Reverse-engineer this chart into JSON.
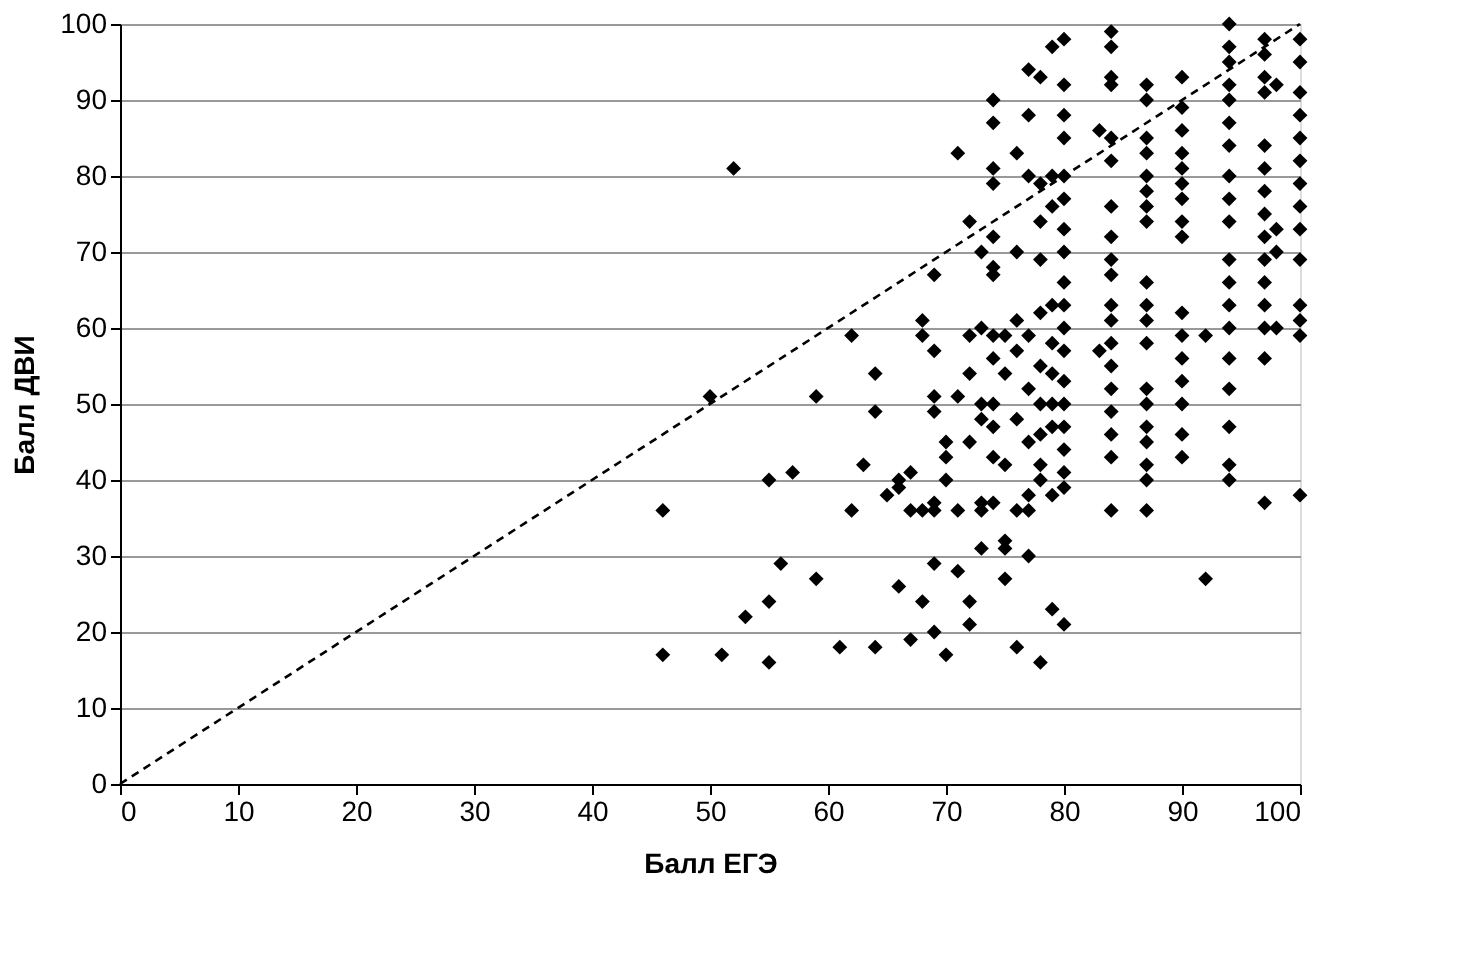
{
  "chart_data": {
    "type": "scatter",
    "xlabel": "Балл ЕГЭ",
    "ylabel": "Балл ДВИ",
    "xlim": [
      0,
      100
    ],
    "ylim": [
      0,
      100
    ],
    "xticks": [
      0,
      10,
      20,
      30,
      40,
      50,
      60,
      70,
      80,
      90,
      100
    ],
    "yticks": [
      0,
      10,
      20,
      30,
      40,
      50,
      60,
      70,
      80,
      90,
      100
    ],
    "grid": "y",
    "series": [
      {
        "color": "#000000",
        "marker": "diamond",
        "x": [
          46,
          46,
          50,
          51,
          52,
          53,
          55,
          55,
          55,
          56,
          57,
          59,
          59,
          61,
          62,
          62,
          63,
          64,
          64,
          64,
          65,
          66,
          66,
          66,
          67,
          67,
          67,
          68,
          68,
          68,
          68,
          69,
          69,
          69,
          69,
          69,
          69,
          69,
          69,
          70,
          70,
          70,
          70,
          71,
          71,
          71,
          71,
          72,
          72,
          72,
          72,
          72,
          72,
          73,
          73,
          73,
          73,
          73,
          73,
          73,
          74,
          74,
          74,
          74,
          74,
          74,
          74,
          74,
          74,
          74,
          74,
          74,
          74,
          75,
          75,
          75,
          75,
          75,
          75,
          76,
          76,
          76,
          76,
          76,
          76,
          76,
          77,
          77,
          77,
          77,
          77,
          77,
          77,
          77,
          77,
          78,
          78,
          78,
          78,
          78,
          78,
          78,
          78,
          78,
          78,
          78,
          79,
          79,
          79,
          79,
          79,
          79,
          79,
          79,
          79,
          79,
          80,
          80,
          80,
          80,
          80,
          80,
          80,
          80,
          80,
          80,
          80,
          80,
          80,
          80,
          80,
          80,
          80,
          80,
          80,
          83,
          83,
          84,
          84,
          84,
          84,
          84,
          84,
          84,
          84,
          84,
          84,
          84,
          84,
          84,
          84,
          84,
          84,
          84,
          84,
          84,
          87,
          87,
          87,
          87,
          87,
          87,
          87,
          87,
          87,
          87,
          87,
          87,
          87,
          87,
          87,
          87,
          87,
          87,
          87,
          90,
          90,
          90,
          90,
          90,
          90,
          90,
          90,
          90,
          90,
          90,
          90,
          90,
          90,
          90,
          90,
          92,
          92,
          94,
          94,
          94,
          94,
          94,
          94,
          94,
          94,
          94,
          94,
          94,
          94,
          94,
          94,
          94,
          94,
          94,
          94,
          94,
          97,
          97,
          97,
          97,
          97,
          97,
          97,
          97,
          97,
          97,
          97,
          97,
          97,
          97,
          97,
          98,
          98,
          98,
          98,
          100,
          100,
          100,
          100,
          100,
          100,
          100,
          100,
          100,
          100,
          100,
          100,
          100,
          100
        ],
        "values": [
          36,
          17,
          51,
          17,
          81,
          22,
          24,
          40,
          16,
          29,
          41,
          51,
          27,
          18,
          59,
          36,
          42,
          54,
          49,
          18,
          38,
          40,
          39,
          26,
          41,
          36,
          19,
          61,
          59,
          36,
          24,
          67,
          57,
          51,
          49,
          37,
          36,
          29,
          20,
          45,
          43,
          40,
          17,
          83,
          51,
          36,
          28,
          74,
          59,
          54,
          45,
          24,
          21,
          70,
          60,
          50,
          48,
          37,
          36,
          31,
          90,
          87,
          81,
          79,
          72,
          68,
          67,
          59,
          56,
          50,
          47,
          43,
          37,
          59,
          54,
          42,
          32,
          31,
          27,
          83,
          70,
          61,
          57,
          48,
          36,
          18,
          94,
          88,
          80,
          59,
          52,
          45,
          38,
          36,
          30,
          93,
          79,
          74,
          69,
          62,
          55,
          50,
          46,
          42,
          40,
          16,
          97,
          80,
          76,
          63,
          58,
          54,
          50,
          47,
          38,
          23,
          98,
          92,
          88,
          85,
          80,
          77,
          73,
          70,
          66,
          63,
          60,
          57,
          53,
          50,
          47,
          44,
          41,
          39,
          21,
          86,
          57,
          99,
          97,
          93,
          92,
          85,
          82,
          76,
          72,
          69,
          67,
          63,
          61,
          58,
          55,
          52,
          49,
          46,
          43,
          36,
          92,
          90,
          85,
          83,
          80,
          78,
          76,
          74,
          66,
          63,
          61,
          58,
          52,
          50,
          47,
          45,
          42,
          40,
          36,
          93,
          89,
          86,
          83,
          81,
          79,
          77,
          74,
          72,
          62,
          59,
          56,
          53,
          50,
          46,
          43,
          59,
          27,
          100,
          97,
          95,
          92,
          90,
          87,
          84,
          80,
          77,
          74,
          69,
          66,
          63,
          60,
          56,
          52,
          47,
          42,
          40,
          98,
          96,
          93,
          91,
          84,
          81,
          78,
          75,
          72,
          69,
          66,
          63,
          60,
          56,
          37,
          92,
          73,
          70,
          60,
          98,
          95,
          91,
          88,
          85,
          82,
          79,
          76,
          73,
          69,
          63,
          61,
          59,
          38
        ]
      },
      {
        "type": "line",
        "color": "#000000",
        "line_style": "dashed",
        "marker": "none",
        "x": [
          0,
          100
        ],
        "values": [
          0,
          100
        ]
      }
    ]
  }
}
